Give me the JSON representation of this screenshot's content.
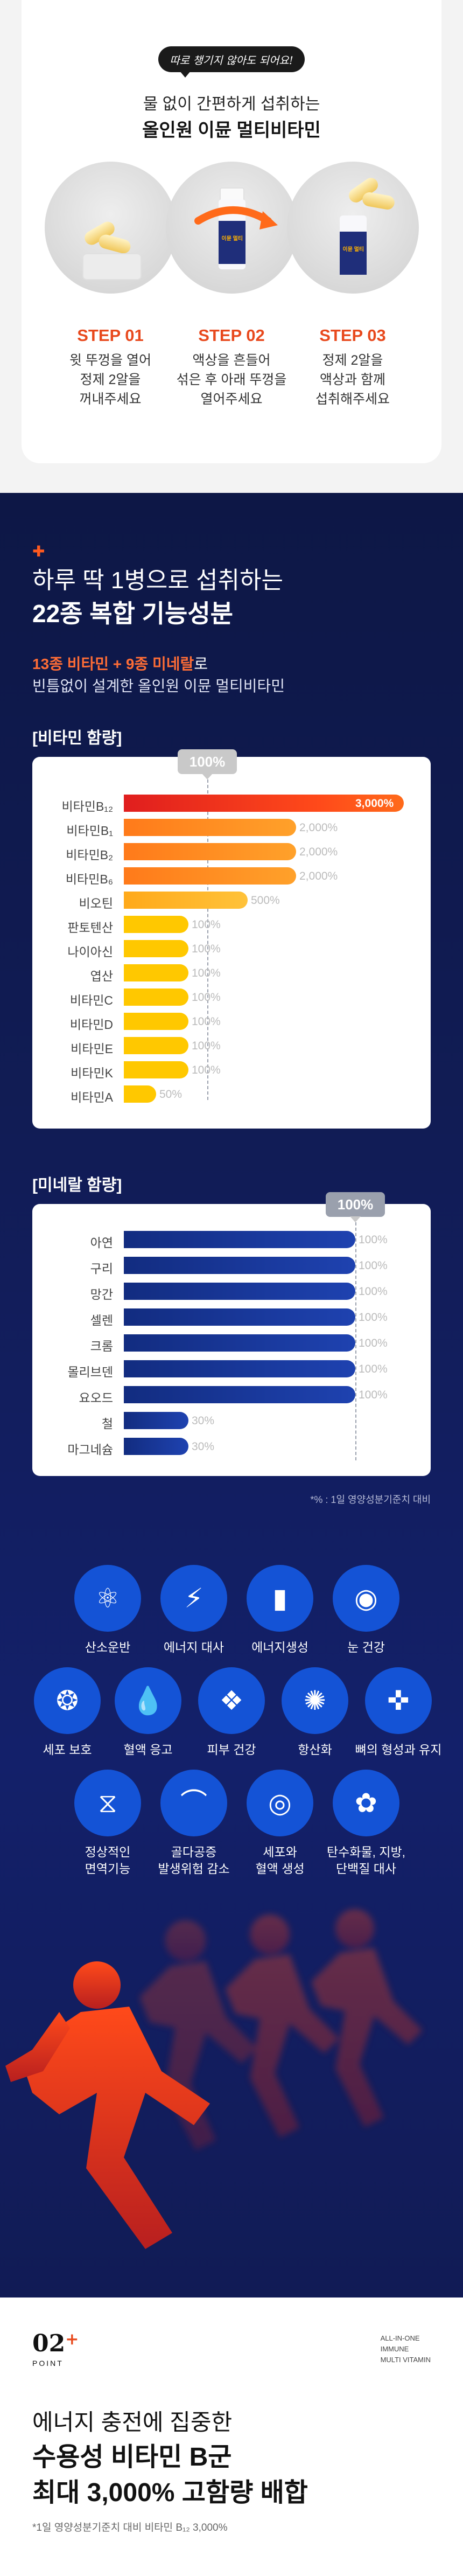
{
  "intro": {
    "tag": "따로 챙기지 않아도 되어요!",
    "subtitle": "물 없이 간편하게 섭취하는",
    "title": "올인원 이뮨 멀티비타민"
  },
  "steps": [
    {
      "label": "STEP 01",
      "desc": "윗 뚜껑을 열어\n정제 2알을\n꺼내주세요"
    },
    {
      "label": "STEP 02",
      "desc": "액상을 흔들어\n섞은 후 아래 뚜껑을\n열어주세요"
    },
    {
      "label": "STEP 03",
      "desc": "정제 2알을\n액상과 함께\n섭취해주세요"
    }
  ],
  "bottle_text": "이뮨\n멀티",
  "section2": {
    "line1": "하루 딱 1병으로 섭취하는",
    "line2": "22종 복합 기능성분",
    "sub_highlight": "13종 비타민 + 9종 미네랄",
    "sub_rest": "로",
    "sub2": "빈틈없이 설계한 올인원 이뮨 멀티비타민"
  },
  "vitamin_label": "[비타민 함량]",
  "mineral_label": "[미네랄 함량]",
  "colors": {
    "navy": "#111c55",
    "orange": "#e8491d",
    "yellow": "#ffc800",
    "blue": "#1453d6",
    "mineral_bar": "#1a3a9c"
  },
  "chart_data": [
    {
      "type": "bar",
      "title": "[비타민 함량]",
      "reference_label": "100%",
      "categories": [
        "비타민B₁₂",
        "비타민B₁",
        "비타민B₂",
        "비타민B₆",
        "비오틴",
        "판토텐산",
        "나이아신",
        "엽산",
        "비타민C",
        "비타민D",
        "비타민E",
        "비타민K",
        "비타민A"
      ],
      "values": [
        3000,
        2000,
        2000,
        2000,
        500,
        100,
        100,
        100,
        100,
        100,
        100,
        100,
        50
      ],
      "value_labels": [
        "3,000%",
        "2,000%",
        "2,000%",
        "2,000%",
        "500%",
        "100%",
        "100%",
        "100%",
        "100%",
        "100%",
        "100%",
        "100%",
        "50%"
      ],
      "unit": "%"
    },
    {
      "type": "bar",
      "title": "[미네랄 함량]",
      "reference_label": "100%",
      "categories": [
        "아연",
        "구리",
        "망간",
        "셀렌",
        "크롬",
        "몰리브덴",
        "요오드",
        "철",
        "마그네슘"
      ],
      "values": [
        100,
        100,
        100,
        100,
        100,
        100,
        100,
        30,
        30
      ],
      "value_labels": [
        "100%",
        "100%",
        "100%",
        "100%",
        "100%",
        "100%",
        "100%",
        "30%",
        "30%"
      ],
      "unit": "%"
    }
  ],
  "footnote": "*% : 1일 영양성분기준치 대비",
  "benefits": [
    {
      "icon": "molecule-icon",
      "label": "산소운반"
    },
    {
      "icon": "lightning-icon",
      "label": "에너지 대사"
    },
    {
      "icon": "battery-icon",
      "label": "에너지생성"
    },
    {
      "icon": "eye-icon",
      "label": "눈 건강"
    },
    {
      "icon": "cell-icon",
      "label": "세포 보호"
    },
    {
      "icon": "blood-drop-icon",
      "label": "혈액 응고"
    },
    {
      "icon": "skin-icon",
      "label": "피부 건강"
    },
    {
      "icon": "antioxidant-icon",
      "label": "항산화"
    },
    {
      "icon": "bone-icon",
      "label": "뼈의 형성과 유지"
    },
    {
      "icon": "dna-icon",
      "label": "정상적인\n면역기능"
    },
    {
      "icon": "joint-icon",
      "label": "골다공증\n발생위험 감소"
    },
    {
      "icon": "blood-cell-icon",
      "label": "세포와\n혈액 생성"
    },
    {
      "icon": "nutrients-icon",
      "label": "탄수화물, 지방,\n단백질 대사"
    }
  ],
  "bottom": {
    "brand": "02",
    "brand_plus": "+",
    "brand_sub": "POINT",
    "tagline": "ALL-IN-ONE\nIMMUNE\nMULTI VITAMIN",
    "line1": "에너지 충전에 집중한",
    "line2": "수용성 비타민 B군",
    "line3": "최대 3,000% 고함량 배합",
    "note": "*1일 영양성분기준치 대비 비타민 B₁₂ 3,000%"
  }
}
